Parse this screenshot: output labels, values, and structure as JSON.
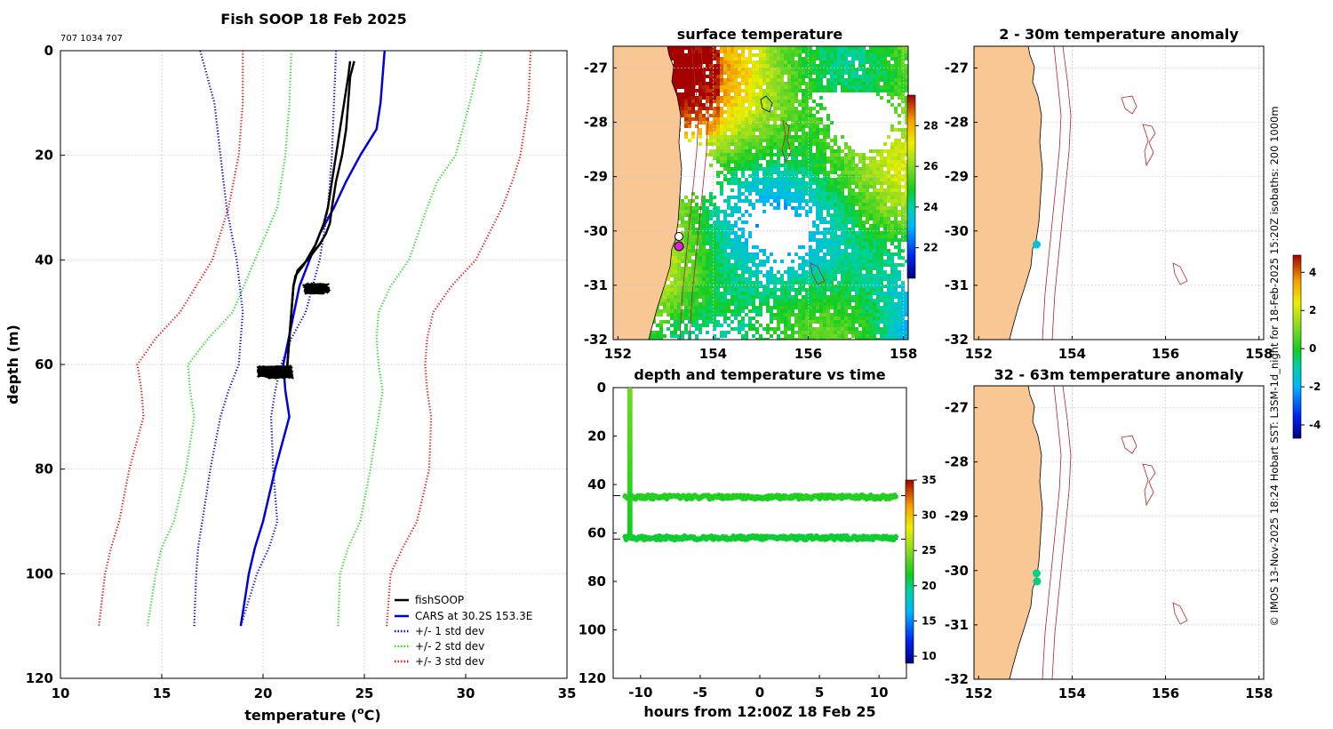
{
  "page": {
    "side_caption": "© IMOS 13-Nov-2025 18:24 Hobart SST: L3SM-1d_night for 18-Feb-2025 15:20Z isobaths: 200  1000m"
  },
  "colors": {
    "land": "#f9c793",
    "isobath": "#b22222",
    "grid": "#c8c8c8",
    "fishsoop": "#000000",
    "cars": "#0000dd",
    "std1": "#0000dd",
    "std2": "#22dd22",
    "std3": "#ee1111"
  },
  "chart_data": [
    {
      "id": "profile",
      "type": "line",
      "title": "Fish SOOP 18 Feb 2025",
      "subtitle": "707 1034 707",
      "xlabel": "temperature (",
      "xlabel_sup": "o",
      "xlabel_unit": "C)",
      "ylabel": "depth (m)",
      "xlim": [
        10,
        35
      ],
      "ylim": [
        0,
        120
      ],
      "y_reversed": true,
      "grid": true,
      "xticks": [
        10,
        15,
        20,
        25,
        30,
        35
      ],
      "yticks": [
        0,
        20,
        40,
        60,
        80,
        100,
        120
      ],
      "legend_position": "bottom-right",
      "series": [
        {
          "name": "fishSOOP",
          "style": "solid",
          "color_key": "fishsoop",
          "x": [
            24.5,
            24.3,
            24.2,
            24.1,
            23.9,
            23.6,
            23.4,
            23.3,
            23.1,
            22.8,
            22.2,
            21.7,
            21.5,
            21.4,
            21.3,
            21.2,
            21.2
          ],
          "y": [
            2,
            5,
            10,
            15,
            20,
            25,
            30,
            33,
            35,
            37,
            40,
            42,
            45,
            50,
            55,
            60,
            62
          ]
        },
        {
          "name": "fishSOOP-2",
          "legend": false,
          "style": "solid",
          "color_key": "fishsoop",
          "x": [
            24.3,
            24.2,
            24.0,
            23.8,
            23.6,
            23.4,
            23.2,
            23.0,
            22.6,
            22.0,
            21.6,
            21.5,
            21.4,
            21.3,
            21.2,
            21.2
          ],
          "y": [
            2,
            5,
            10,
            15,
            20,
            25,
            30,
            33,
            37,
            41,
            43,
            45,
            50,
            55,
            60,
            62
          ]
        },
        {
          "name": "CARS at 30.2S 153.3E",
          "style": "solid",
          "color_key": "cars",
          "x": [
            26.0,
            25.9,
            25.8,
            25.6,
            24.8,
            24.1,
            23.5,
            22.8,
            21.8,
            21.0,
            21.1,
            21.3,
            20.6,
            20.0,
            19.6,
            19.3,
            19.1,
            18.9
          ],
          "y": [
            0,
            5,
            10,
            15,
            20,
            25,
            30,
            35,
            45,
            60,
            65,
            70,
            80,
            90,
            95,
            100,
            105,
            110
          ]
        },
        {
          "name": "+/- 1 std dev",
          "style": "dotted",
          "color_key": "std1",
          "x": [
            23.6,
            23.5,
            23.4,
            23.2,
            22.8,
            22.1,
            21.4,
            20.9,
            20.6,
            20.4,
            20.5,
            20.7,
            20.3,
            19.7,
            18.9
          ],
          "y": [
            0,
            10,
            20,
            30,
            40,
            50,
            55,
            60,
            65,
            70,
            80,
            90,
            95,
            100,
            110
          ]
        },
        {
          "name": "+/- 1 std dev",
          "legend": false,
          "style": "dotted",
          "color_key": "std1",
          "x": [
            16.6,
            16.7,
            16.8,
            17.0,
            17.4,
            17.9,
            18.3,
            18.8,
            18.9,
            19.0,
            18.7,
            18.2,
            17.9,
            17.6,
            16.9
          ],
          "y": [
            110,
            100,
            95,
            90,
            80,
            70,
            65,
            60,
            55,
            50,
            40,
            30,
            20,
            10,
            0
          ]
        },
        {
          "name": "+/- 2 std dev",
          "style": "dotted",
          "color_key": "std2",
          "x": [
            21.4,
            21.3,
            21.1,
            20.7,
            19.6,
            18.5,
            17.3,
            16.3,
            16.4,
            16.6,
            16.2,
            15.6,
            15.0,
            14.7,
            14.3
          ],
          "y": [
            0,
            10,
            20,
            30,
            40,
            50,
            55,
            60,
            65,
            70,
            80,
            90,
            95,
            100,
            110
          ]
        },
        {
          "name": "+/- 2 std dev",
          "legend": false,
          "style": "dotted",
          "color_key": "std2",
          "x": [
            23.7,
            23.8,
            24.2,
            24.8,
            25.3,
            25.7,
            25.9,
            25.7,
            25.6,
            25.7,
            26.3,
            27.2,
            28.1,
            28.6,
            29.5,
            30.2,
            30.7,
            30.8
          ],
          "y": [
            110,
            100,
            95,
            90,
            80,
            70,
            65,
            60,
            55,
            50,
            45,
            40,
            30,
            25,
            20,
            10,
            2,
            0
          ]
        },
        {
          "name": "+/- 3 std dev",
          "style": "dotted",
          "color_key": "std3",
          "x": [
            19.0,
            19.0,
            18.8,
            18.3,
            17.5,
            15.9,
            14.7,
            13.8,
            14.0,
            14.1,
            13.4,
            12.9,
            12.5,
            12.2,
            11.9
          ],
          "y": [
            0,
            10,
            20,
            30,
            40,
            50,
            55,
            60,
            65,
            70,
            80,
            90,
            95,
            100,
            110
          ]
        },
        {
          "name": "+/- 3 std dev",
          "legend": false,
          "style": "dotted",
          "color_key": "std3",
          "x": [
            26.1,
            26.3,
            26.9,
            27.6,
            28.2,
            28.3,
            28.1,
            28.0,
            28.1,
            28.4,
            29.3,
            30.5,
            31.8,
            32.3,
            32.7,
            33.1,
            33.2
          ],
          "y": [
            110,
            100,
            95,
            90,
            80,
            70,
            65,
            60,
            55,
            50,
            45,
            40,
            30,
            25,
            20,
            10,
            0
          ]
        }
      ],
      "scatter_clusters": [
        {
          "name": "fishSOOP-45m",
          "x_range": [
            22.0,
            23.3
          ],
          "y_range": [
            44.5,
            46.5
          ],
          "color_key": "fishsoop"
        },
        {
          "name": "fishSOOP-61m",
          "x_range": [
            19.7,
            21.5
          ],
          "y_range": [
            60.3,
            62.7
          ],
          "color_key": "fishsoop"
        }
      ]
    },
    {
      "id": "sst-map",
      "type": "heatmap",
      "title": "surface temperature",
      "xlim": [
        151.9,
        158.1
      ],
      "ylim": [
        -32,
        -26.6
      ],
      "xticks": [
        152,
        154,
        156,
        158
      ],
      "yticks": [
        -27,
        -28,
        -29,
        -30,
        -31,
        -32
      ],
      "colorbar": {
        "min": 20.5,
        "max": 29.5,
        "ticks": [
          22,
          24,
          26,
          28
        ]
      },
      "markers": [
        {
          "lon": 153.23,
          "lat": -30.07,
          "fill": "#ffffff",
          "edge": "#000000"
        },
        {
          "lon": 153.25,
          "lat": -30.25,
          "fill": "#dd22dd",
          "edge": "#000000"
        }
      ]
    },
    {
      "id": "depth-time",
      "type": "scatter",
      "title": "depth and temperature vs time",
      "xlabel": "hours from 12:00Z 18 Feb 25",
      "xlim": [
        -12.3,
        12.3
      ],
      "ylim": [
        0,
        120
      ],
      "y_reversed": true,
      "xticks": [
        -10,
        -5,
        0,
        5,
        10
      ],
      "yticks": [
        0,
        20,
        40,
        60,
        80,
        100,
        120
      ],
      "colorbar": {
        "min": 9,
        "max": 35,
        "ticks": [
          10,
          15,
          20,
          25,
          30,
          35
        ]
      },
      "segments": [
        {
          "name": "descent",
          "x": [
            -10.9,
            -10.9
          ],
          "y": [
            1,
            62
          ],
          "temp_start": 24.3,
          "temp_end": 21.5
        },
        {
          "name": "track-45m",
          "x": [
            -11.3,
            11.4
          ],
          "y": [
            45.2,
            45.2
          ],
          "temp": 22.0,
          "ref_line_y": 44.6
        },
        {
          "name": "track-61m",
          "x": [
            -11.3,
            11.4
          ],
          "y": [
            62.0,
            62.0
          ],
          "temp": 21.2,
          "ref_line_y": 62.5
        }
      ]
    },
    {
      "id": "anomaly-2-30",
      "type": "scatter",
      "title": "2 - 30m temperature anomaly",
      "xlim": [
        151.9,
        158.1
      ],
      "ylim": [
        -32,
        -26.6
      ],
      "xticks": [
        152,
        154,
        156,
        158
      ],
      "yticks": [
        -27,
        -28,
        -29,
        -30,
        -31,
        -32
      ],
      "points": [
        {
          "lon": 153.24,
          "lat": -30.25,
          "anomaly": -1.5
        }
      ]
    },
    {
      "id": "anomaly-32-63",
      "type": "scatter",
      "title": "32 - 63m temperature anomaly",
      "xlim": [
        151.9,
        158.1
      ],
      "ylim": [
        -32,
        -26.6
      ],
      "xticks": [
        152,
        154,
        156,
        158
      ],
      "yticks": [
        -27,
        -28,
        -29,
        -30,
        -31,
        -32
      ],
      "points": [
        {
          "lon": 153.24,
          "lat": -30.05,
          "anomaly": -0.7
        },
        {
          "lon": 153.25,
          "lat": -30.2,
          "anomaly": -0.6
        }
      ]
    },
    {
      "id": "anomaly-colorbar",
      "type": "heatmap",
      "min": -4.7,
      "max": 4.9,
      "ticks": [
        -4,
        -2,
        0,
        2,
        4
      ]
    }
  ]
}
